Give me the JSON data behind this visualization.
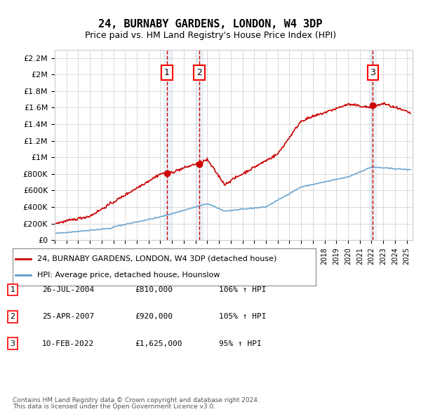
{
  "title": "24, BURNABY GARDENS, LONDON, W4 3DP",
  "subtitle": "Price paid vs. HM Land Registry's House Price Index (HPI)",
  "ylabel_ticks": [
    "£0",
    "£200K",
    "£400K",
    "£600K",
    "£800K",
    "£1M",
    "£1.2M",
    "£1.4M",
    "£1.6M",
    "£1.8M",
    "£2M",
    "£2.2M"
  ],
  "ytick_values": [
    0,
    200000,
    400000,
    600000,
    800000,
    1000000,
    1200000,
    1400000,
    1600000,
    1800000,
    2000000,
    2200000
  ],
  "ylim": [
    0,
    2300000
  ],
  "xlim_start": 1995.0,
  "xlim_end": 2025.5,
  "sale_dates": [
    2004.57,
    2007.31,
    2022.11
  ],
  "sale_prices": [
    810000,
    920000,
    1625000
  ],
  "sale_labels": [
    "1",
    "2",
    "3"
  ],
  "shade_color": "#cce0f0",
  "shade_alpha": 0.35,
  "dashed_color": "#cc0000",
  "legend_line1": "24, BURNABY GARDENS, LONDON, W4 3DP (detached house)",
  "legend_line2": "HPI: Average price, detached house, Hounslow",
  "table_entries": [
    {
      "label": "1",
      "date": "26-JUL-2004",
      "price": "£810,000",
      "hpi": "106% ↑ HPI"
    },
    {
      "label": "2",
      "date": "25-APR-2007",
      "price": "£920,000",
      "hpi": "105% ↑ HPI"
    },
    {
      "label": "3",
      "date": "10-FEB-2022",
      "price": "£1,625,000",
      "hpi": "95% ↑ HPI"
    }
  ],
  "footer1": "Contains HM Land Registry data © Crown copyright and database right 2024.",
  "footer2": "This data is licensed under the Open Government Licence v3.0.",
  "red_line_color": "#cc0000",
  "blue_line_color": "#5599cc",
  "background_color": "#ffffff",
  "grid_color": "#cccccc"
}
